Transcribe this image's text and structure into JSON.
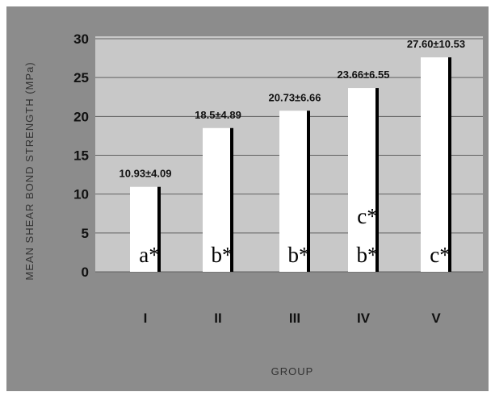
{
  "chart_data": {
    "type": "bar",
    "title": "",
    "xlabel": "GROUP",
    "ylabel": "MEAN SHEAR BOND STRENGTH (MPa)",
    "categories": [
      "I",
      "II",
      "III",
      "IV",
      "V"
    ],
    "values": [
      10.93,
      18.5,
      20.73,
      23.66,
      27.6
    ],
    "value_labels": [
      "10.93±4.09",
      "18.5±4.89",
      "20.73±6.66",
      "23.66±6.55",
      "27.60±10.53"
    ],
    "significance_labels": [
      [
        "a*"
      ],
      [
        "b*"
      ],
      [
        "b*"
      ],
      [
        "b*",
        "c*"
      ],
      [
        "c*"
      ]
    ],
    "ylim": [
      0,
      30
    ],
    "yticks": [
      0,
      5,
      10,
      15,
      20,
      25,
      30
    ],
    "grid": true,
    "legend": "none",
    "colors": {
      "outer_background": "#8c8c8c",
      "plot_background": "#c8c8c8",
      "gridline": "#606060",
      "bar_fill": "#ffffff",
      "bar_shadow": "#000000"
    }
  }
}
